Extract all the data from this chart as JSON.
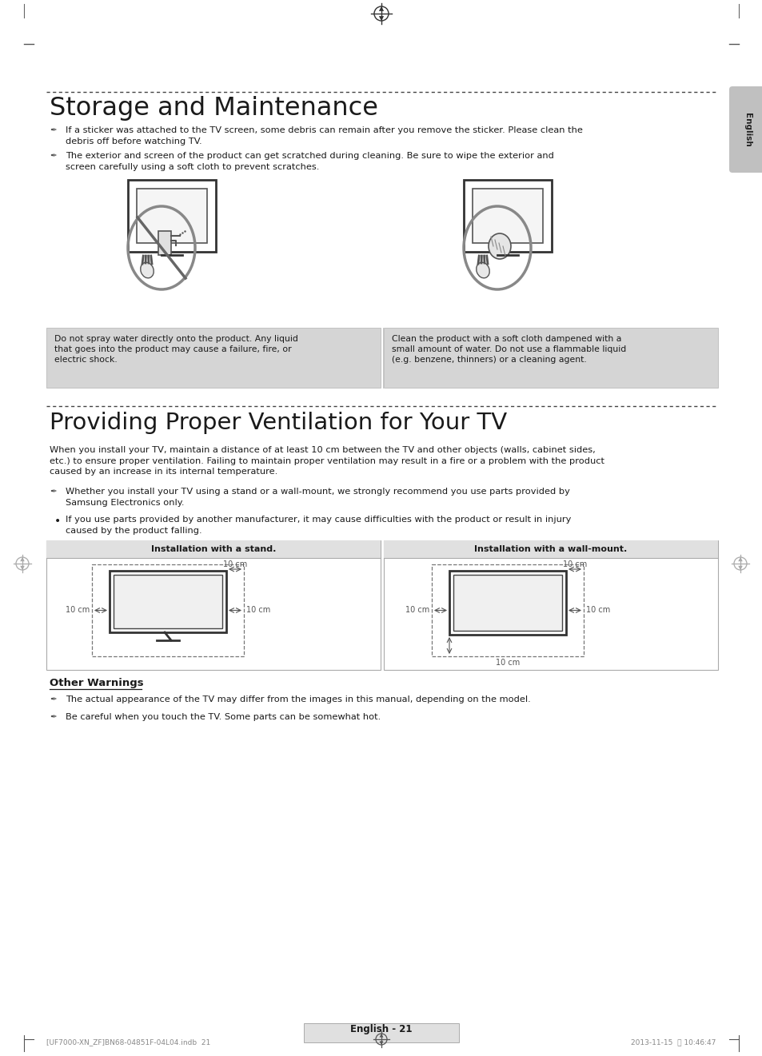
{
  "title1": "Storage and Maintenance",
  "title2": "Providing Proper Ventilation for Your TV",
  "section3_title": "Other Warnings",
  "bullet1_line1": "If a sticker was attached to the TV screen, some debris can remain after you remove the sticker. Please clean the",
  "bullet1_line2": "debris off before watching TV.",
  "bullet2_line1": "The exterior and screen of the product can get scratched during cleaning. Be sure to wipe the exterior and",
  "bullet2_line2": "screen carefully using a soft cloth to prevent scratches.",
  "caption_left": "Do not spray water directly onto the product. Any liquid\nthat goes into the product may cause a failure, fire, or\nelectric shock.",
  "caption_right": "Clean the product with a soft cloth dampened with a\nsmall amount of water. Do not use a flammable liquid\n(e.g. benzene, thinners) or a cleaning agent.",
  "ventilation_para": "When you install your TV, maintain a distance of at least 10 cm between the TV and other objects (walls, cabinet sides,\netc.) to ensure proper ventilation. Failing to maintain proper ventilation may result in a fire or a problem with the product\ncaused by an increase in its internal temperature.",
  "vent_bullet1_line1": "Whether you install your TV using a stand or a wall-mount, we strongly recommend you use parts provided by",
  "vent_bullet1_line2": "Samsung Electronics only.",
  "vent_bullet2_line1": "If you use parts provided by another manufacturer, it may cause difficulties with the product or result in injury",
  "vent_bullet2_line2": "caused by the product falling.",
  "install_stand_label": "Installation with a stand.",
  "install_wall_label": "Installation with a wall-mount.",
  "other_warn1": "The actual appearance of the TV may differ from the images in this manual, depending on the model.",
  "other_warn2": "Be careful when you touch the TV. Some parts can be somewhat hot.",
  "page_number": "English - 21",
  "footer_text": "[UF7000-XN_ZF]BN68-04851F-04L04.indb  21",
  "footer_date": "2013-11-15  兌 10:46:47",
  "english_tab": "English",
  "bg_color": "#ffffff",
  "tab_color": "#c0c0c0",
  "section_bg": "#e0e0e0",
  "text_color": "#1a1a1a",
  "caption_bg": "#d5d5d5",
  "dim_color": "#555555"
}
